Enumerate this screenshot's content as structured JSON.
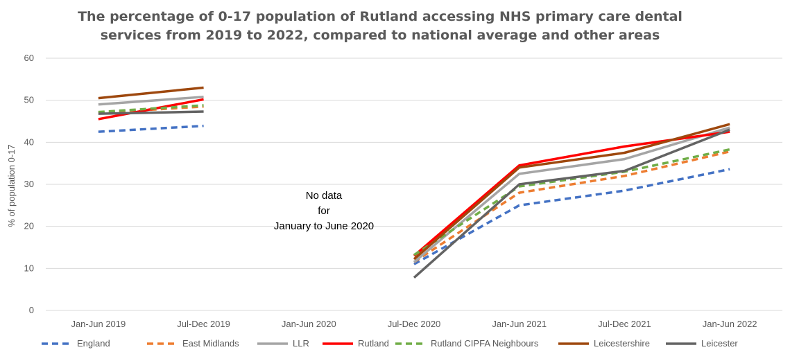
{
  "chart_data": {
    "type": "line",
    "title_lines": [
      "The percentage of 0-17 population of Rutland accessing NHS primary care dental",
      "services from 2019 to 2022, compared to national average and other areas"
    ],
    "xlabel": "",
    "ylabel": "% of population 0-17",
    "ylim": [
      0,
      60
    ],
    "y_ticks": [
      0,
      10,
      20,
      30,
      40,
      50,
      60
    ],
    "categories": [
      "Jan-Jun 2019",
      "Jul-Dec 2019",
      "Jan-Jun 2020",
      "Jul-Dec 2020",
      "Jan-Jun 2021",
      "Jul-Dec 2021",
      "Jan-Jun 2022"
    ],
    "grid": true,
    "legend_position": "bottom",
    "annotation_lines": [
      "No data",
      "for",
      "January to June 2020"
    ],
    "series": [
      {
        "name": "England",
        "color": "#4472C4",
        "dashed": true,
        "values": [
          42.5,
          43.9,
          null,
          11,
          25,
          28.5,
          33.6
        ]
      },
      {
        "name": "East Midlands",
        "color": "#ED7D31",
        "dashed": true,
        "values": [
          47,
          48.5,
          null,
          11.5,
          28,
          32,
          37.8
        ]
      },
      {
        "name": "LLR",
        "color": "#A5A5A5",
        "dashed": false,
        "values": [
          49,
          50.8,
          null,
          11.5,
          32.5,
          36,
          43.5
        ]
      },
      {
        "name": "Rutland",
        "color": "#FF0000",
        "dashed": false,
        "values": [
          45.5,
          50.2,
          null,
          13,
          34.5,
          39,
          42.5
        ]
      },
      {
        "name": "Rutland CIPFA Neighbours",
        "color": "#70AD47",
        "dashed": true,
        "values": [
          47.2,
          48.8,
          null,
          13.2,
          29.5,
          33,
          38.3
        ]
      },
      {
        "name": "Leicestershire",
        "color": "#9E480E",
        "dashed": false,
        "values": [
          50.5,
          53,
          null,
          12.2,
          34,
          37.5,
          44.3
        ]
      },
      {
        "name": "Leicester",
        "color": "#636363",
        "dashed": false,
        "values": [
          46.8,
          47.3,
          null,
          7.8,
          30,
          33.2,
          43
        ]
      }
    ]
  }
}
